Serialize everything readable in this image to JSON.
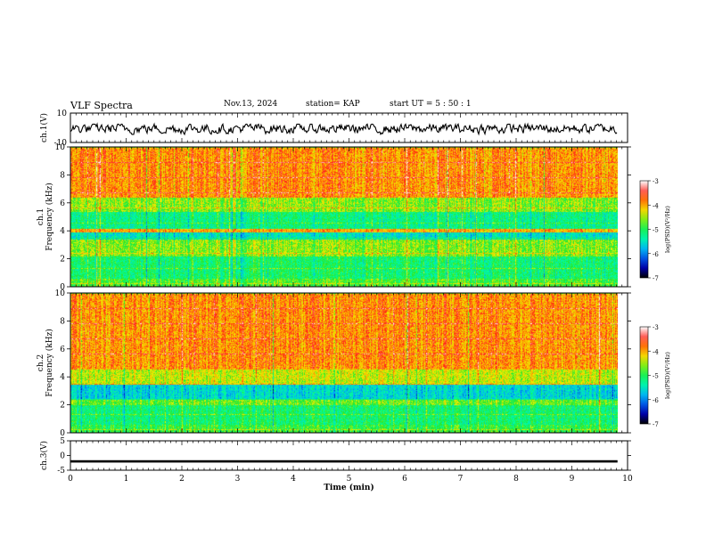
{
  "header": {
    "title": "VLF Spectra",
    "date": "Nov.13, 2024",
    "station": "station= KAP",
    "start": "start  UT =   5  : 50 : 1"
  },
  "chart_data": [
    {
      "type": "line",
      "panel": "ch1-waveform",
      "ylabel": "ch.1(V)",
      "ylim": [
        -10,
        10
      ],
      "yticks": [
        "10",
        "-10"
      ],
      "xlim": [
        0,
        10
      ],
      "series": [
        {
          "x_range": [
            0,
            9.82
          ],
          "amplitude_envelope_V": [
            -4,
            3
          ],
          "color": "#000000"
        }
      ]
    },
    {
      "type": "heatmap",
      "panel": "ch1-spectrogram",
      "ylabel": "ch.1\nFrequency (kHz)",
      "ylim": [
        0,
        10
      ],
      "yticks": [
        "0",
        "2",
        "4",
        "6",
        "8",
        "10"
      ],
      "x_range": [
        0,
        9.82
      ],
      "colorbar": {
        "label": "log(PSD)(V²/Hz)",
        "range": [
          -7,
          -3
        ],
        "ticks": [
          "-3",
          "-4",
          "-5",
          "-6",
          "-7"
        ]
      },
      "level_profile": [
        {
          "f_khz": [
            0,
            0.6
          ],
          "log_psd": -4.8
        },
        {
          "f_khz": [
            0.6,
            2.2
          ],
          "log_psd": -5.1
        },
        {
          "f_khz": [
            2.2,
            3.4
          ],
          "log_psd": -4.6
        },
        {
          "f_khz": [
            3.4,
            3.9
          ],
          "log_psd": -5.5
        },
        {
          "f_khz": [
            3.9,
            4.2
          ],
          "log_psd": -4.0
        },
        {
          "f_khz": [
            4.2,
            5.4
          ],
          "log_psd": -5.2
        },
        {
          "f_khz": [
            5.4,
            6.4
          ],
          "log_psd": -4.6
        },
        {
          "f_khz": [
            6.4,
            10
          ],
          "log_psd": -3.9
        }
      ]
    },
    {
      "type": "heatmap",
      "panel": "ch2-spectrogram",
      "ylabel": "ch.2\nFrequency (kHz)",
      "ylim": [
        0,
        10
      ],
      "yticks": [
        "0",
        "2",
        "4",
        "6",
        "8",
        "10"
      ],
      "x_range": [
        0,
        9.82
      ],
      "colorbar": {
        "label": "log(PSD)(V²/Hz)",
        "range": [
          -7,
          -3
        ],
        "ticks": [
          "-3",
          "-4",
          "-5",
          "-6",
          "-7"
        ]
      },
      "level_profile": [
        {
          "f_khz": [
            0,
            0.6
          ],
          "log_psd": -4.9
        },
        {
          "f_khz": [
            0.6,
            2.0
          ],
          "log_psd": -5.1
        },
        {
          "f_khz": [
            2.0,
            2.4
          ],
          "log_psd": -4.7
        },
        {
          "f_khz": [
            2.4,
            3.5
          ],
          "log_psd": -5.6
        },
        {
          "f_khz": [
            3.5,
            4.6
          ],
          "log_psd": -4.4
        },
        {
          "f_khz": [
            4.6,
            10
          ],
          "log_psd": -3.9
        }
      ]
    },
    {
      "type": "line",
      "panel": "ch3-waveform",
      "ylabel": "ch.3(V)",
      "ylim": [
        -5,
        5
      ],
      "yticks": [
        "5",
        "0",
        "-5"
      ],
      "xlabel": "Time (min)",
      "xlim": [
        0,
        10
      ],
      "xticks": [
        "0",
        "1",
        "2",
        "3",
        "4",
        "5",
        "6",
        "7",
        "8",
        "9",
        "10"
      ],
      "series": [
        {
          "x_range": [
            0,
            9.82
          ],
          "value_V": -2,
          "amplitude_V": 0.4,
          "color": "#000000"
        }
      ]
    }
  ]
}
